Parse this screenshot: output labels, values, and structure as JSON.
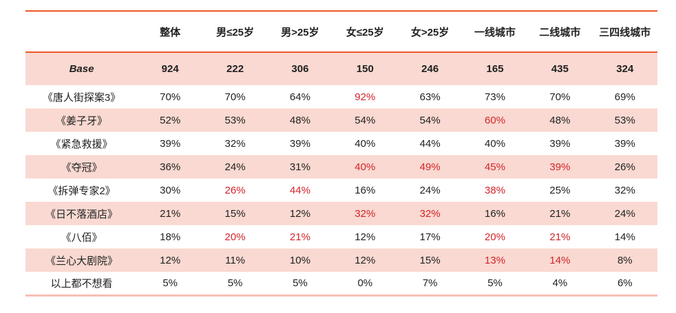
{
  "colors": {
    "accent_line": "#EC5928",
    "row_pink": "#F9D9D1",
    "bottom_line": "#F7BFB2",
    "highlight_red": "#D2232A",
    "text": "#212121"
  },
  "chart_data": {
    "type": "table",
    "columns": [
      "",
      "整体",
      "男≤25岁",
      "男>25岁",
      "女≤25岁",
      "女>25岁",
      "一线城市",
      "二线城市",
      "三四线城市"
    ],
    "base_row": {
      "label": "Base",
      "values": [
        "924",
        "222",
        "306",
        "150",
        "246",
        "165",
        "435",
        "324"
      ]
    },
    "rows": [
      {
        "label": "《唐人街探案3》",
        "values": [
          "70%",
          "70%",
          "64%",
          "92%",
          "63%",
          "73%",
          "70%",
          "69%"
        ],
        "red": [
          3
        ]
      },
      {
        "label": "《姜子牙》",
        "values": [
          "52%",
          "53%",
          "48%",
          "54%",
          "54%",
          "60%",
          "48%",
          "53%"
        ],
        "red": [
          5
        ]
      },
      {
        "label": "《紧急救援》",
        "values": [
          "39%",
          "32%",
          "39%",
          "40%",
          "44%",
          "40%",
          "39%",
          "39%"
        ],
        "red": []
      },
      {
        "label": "《夺冠》",
        "values": [
          "36%",
          "24%",
          "31%",
          "40%",
          "49%",
          "45%",
          "39%",
          "26%"
        ],
        "red": [
          3,
          4,
          5,
          6
        ]
      },
      {
        "label": "《拆弹专家2》",
        "values": [
          "30%",
          "26%",
          "44%",
          "16%",
          "24%",
          "38%",
          "25%",
          "32%"
        ],
        "red": [
          1,
          2,
          5
        ]
      },
      {
        "label": "《日不落酒店》",
        "values": [
          "21%",
          "15%",
          "12%",
          "32%",
          "32%",
          "16%",
          "21%",
          "24%"
        ],
        "red": [
          3,
          4
        ]
      },
      {
        "label": "《八佰》",
        "values": [
          "18%",
          "20%",
          "21%",
          "12%",
          "17%",
          "20%",
          "21%",
          "14%"
        ],
        "red": [
          1,
          2,
          5,
          6
        ]
      },
      {
        "label": "《兰心大剧院》",
        "values": [
          "12%",
          "11%",
          "10%",
          "12%",
          "15%",
          "13%",
          "14%",
          "8%"
        ],
        "red": [
          5,
          6
        ]
      },
      {
        "label": "以上都不想看",
        "values": [
          "5%",
          "5%",
          "5%",
          "0%",
          "7%",
          "5%",
          "4%",
          "6%"
        ],
        "red": []
      }
    ]
  }
}
